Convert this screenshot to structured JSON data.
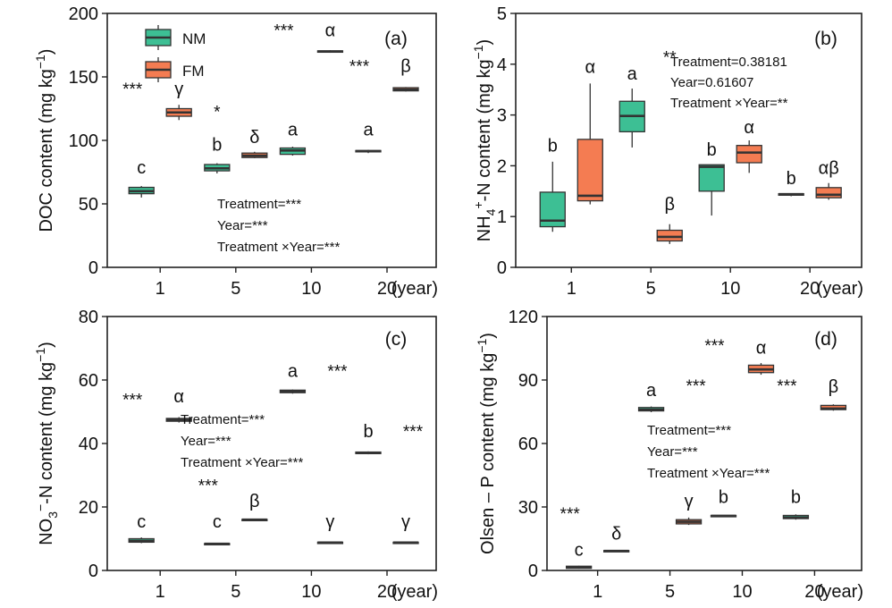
{
  "legend": {
    "items": [
      {
        "label": "NM",
        "color": "#3dbf94"
      },
      {
        "label": "FM",
        "color": "#f47c52"
      }
    ]
  },
  "colors": {
    "NM": "#3dbf94",
    "FM": "#f47c52",
    "median": "#333333",
    "axis": "#222222"
  },
  "chart_data": [
    {
      "type": "box",
      "panel_label": "(a)",
      "ylabel": "DOC content (mg kg⁻¹)",
      "ylabel_parts": {
        "main": "DOC content (mg kg",
        "sup": "−1",
        "close": ")"
      },
      "xlabel_unit": "(year)",
      "categories": [
        "1",
        "5",
        "10",
        "20"
      ],
      "ylim": [
        0,
        200
      ],
      "yticks": [
        0,
        50,
        100,
        150,
        200
      ],
      "series": [
        {
          "name": "NM",
          "boxes": [
            {
              "min": 55,
              "q1": 58,
              "median": 60,
              "q3": 63,
              "max": 64
            },
            {
              "min": 74,
              "q1": 76,
              "median": 78,
              "q3": 81,
              "max": 82
            },
            {
              "min": 88,
              "q1": 89,
              "median": 92,
              "q3": 94,
              "max": 95
            },
            {
              "min": 90,
              "q1": 91,
              "median": 91.5,
              "q3": 92,
              "max": 92.5
            }
          ]
        },
        {
          "name": "FM",
          "boxes": [
            {
              "min": 116,
              "q1": 119,
              "median": 122,
              "q3": 125,
              "max": 128
            },
            {
              "min": 86,
              "q1": 86.5,
              "median": 88,
              "q3": 90,
              "max": 91
            },
            {
              "min": 169,
              "q1": 169.5,
              "median": 170,
              "q3": 170.5,
              "max": 171
            },
            {
              "min": 138.5,
              "q1": 139,
              "median": 140,
              "q3": 141.5,
              "max": 142
            }
          ]
        }
      ],
      "annotations": [
        {
          "text": "c",
          "x": 0,
          "series": 0,
          "y": 74
        },
        {
          "text": "***",
          "x": 0,
          "series": 0,
          "y": 136
        },
        {
          "text": "γ",
          "x": 0,
          "series": 1,
          "y": 136
        },
        {
          "text": "b",
          "x": 1,
          "series": 0,
          "y": 92
        },
        {
          "text": "*",
          "x": 1,
          "series": 0,
          "y": 118
        },
        {
          "text": "δ",
          "x": 1,
          "series": 1,
          "y": 98
        },
        {
          "text": "a",
          "x": 2,
          "series": 0,
          "y": 104
        },
        {
          "text": "***",
          "x": 2,
          "series": 0,
          "y": 182
        },
        {
          "text": "α",
          "x": 2,
          "series": 1,
          "y": 182
        },
        {
          "text": "a",
          "x": 3,
          "series": 0,
          "y": 104
        },
        {
          "text": "***",
          "x": 3,
          "series": 0,
          "y": 154
        },
        {
          "text": "β",
          "x": 3,
          "series": 1,
          "y": 154
        }
      ],
      "stats": [
        "Treatment=***",
        "Year=***",
        "Treatment ×Year=***"
      ]
    },
    {
      "type": "box",
      "panel_label": "(b)",
      "ylabel": "NH₄⁺-N content (mg kg⁻¹)",
      "ylabel_parts": {
        "main": "content (mg kg",
        "sup": "−1",
        "close": ")",
        "ion": "NH",
        "ion_sub": "4",
        "ion_sup": "+",
        "ion_tail": "-N"
      },
      "xlabel_unit": "(year)",
      "categories": [
        "1",
        "5",
        "10",
        "20"
      ],
      "ylim": [
        0,
        5
      ],
      "yticks": [
        0,
        1,
        2,
        3,
        4,
        5
      ],
      "series": [
        {
          "name": "NM",
          "boxes": [
            {
              "min": 0.7,
              "q1": 0.8,
              "median": 0.92,
              "q3": 1.48,
              "max": 2.08
            },
            {
              "min": 2.36,
              "q1": 2.67,
              "median": 2.98,
              "q3": 3.27,
              "max": 3.52
            },
            {
              "min": 1.02,
              "q1": 1.5,
              "median": 1.98,
              "q3": 2.02,
              "max": 2.02
            },
            {
              "min": 1.4,
              "q1": 1.42,
              "median": 1.44,
              "q3": 1.45,
              "max": 1.46
            }
          ]
        },
        {
          "name": "FM",
          "boxes": [
            {
              "min": 1.24,
              "q1": 1.31,
              "median": 1.41,
              "q3": 2.52,
              "max": 3.62
            },
            {
              "min": 0.46,
              "q1": 0.52,
              "median": 0.6,
              "q3": 0.73,
              "max": 0.85
            },
            {
              "min": 1.86,
              "q1": 2.06,
              "median": 2.26,
              "q3": 2.4,
              "max": 2.5
            },
            {
              "min": 1.33,
              "q1": 1.37,
              "median": 1.43,
              "q3": 1.57,
              "max": 1.66
            }
          ]
        }
      ],
      "annotations": [
        {
          "text": "b",
          "x": 0,
          "series": 0,
          "y": 2.28
        },
        {
          "text": "α",
          "x": 0,
          "series": 1,
          "y": 3.83
        },
        {
          "text": "a",
          "x": 1,
          "series": 0,
          "y": 3.7
        },
        {
          "text": "**",
          "x": 1,
          "series": 1,
          "y": 4.02
        },
        {
          "text": "β",
          "x": 1,
          "series": 1,
          "y": 1.13
        },
        {
          "text": "b",
          "x": 2,
          "series": 0,
          "y": 2.2
        },
        {
          "text": "α",
          "x": 2,
          "series": 1,
          "y": 2.64
        },
        {
          "text": "b",
          "x": 3,
          "series": 0,
          "y": 1.64
        },
        {
          "text": "αβ",
          "x": 3,
          "series": 1,
          "y": 1.84
        }
      ],
      "stats": [
        "Treatment=0.38181",
        "Year=0.61607",
        "Treatment ×Year=**"
      ]
    },
    {
      "type": "box",
      "panel_label": "(c)",
      "ylabel": "NO₃⁻-N content (mg kg⁻¹)",
      "ylabel_parts": {
        "main": "content (mg kg",
        "sup": "−1",
        "close": ")",
        "ion": "NO",
        "ion_sub": "3",
        "ion_sup": "−",
        "ion_tail": "-N"
      },
      "xlabel_unit": "(year)",
      "categories": [
        "1",
        "5",
        "10",
        "20"
      ],
      "ylim": [
        0,
        80
      ],
      "yticks": [
        0,
        20,
        40,
        60,
        80
      ],
      "series": [
        {
          "name": "NM",
          "boxes": [
            {
              "min": 8.6,
              "q1": 8.9,
              "median": 9.3,
              "q3": 10,
              "max": 10.4
            },
            {
              "min": 8.1,
              "q1": 8.2,
              "median": 8.4,
              "q3": 8.5,
              "max": 8.6
            },
            {
              "min": 55.7,
              "q1": 56,
              "median": 56.3,
              "q3": 56.8,
              "max": 57
            },
            {
              "min": 36.6,
              "q1": 36.8,
              "median": 37,
              "q3": 37.3,
              "max": 37.5
            }
          ]
        },
        {
          "name": "FM",
          "boxes": [
            {
              "min": 46.6,
              "q1": 47,
              "median": 47.4,
              "q3": 47.9,
              "max": 48.3
            },
            {
              "min": 15.7,
              "q1": 15.8,
              "median": 16,
              "q3": 16.1,
              "max": 16.2
            },
            {
              "min": 8.6,
              "q1": 8.7,
              "median": 8.8,
              "q3": 8.9,
              "max": 9
            },
            {
              "min": 8.6,
              "q1": 8.7,
              "median": 8.8,
              "q3": 8.9,
              "max": 9
            }
          ]
        }
      ],
      "annotations": [
        {
          "text": "c",
          "x": 0,
          "series": 0,
          "y": 13.5
        },
        {
          "text": "***",
          "x": 0,
          "series": 0,
          "y": 52
        },
        {
          "text": "α",
          "x": 0,
          "series": 1,
          "y": 53
        },
        {
          "text": "c",
          "x": 1,
          "series": 0,
          "y": 13.5
        },
        {
          "text": "***",
          "x": 1,
          "series": 0,
          "y": 25
        },
        {
          "text": "β",
          "x": 1,
          "series": 1,
          "y": 20
        },
        {
          "text": "a",
          "x": 2,
          "series": 0,
          "y": 61
        },
        {
          "text": "***",
          "x": 2,
          "series": 1,
          "y": 61
        },
        {
          "text": "γ",
          "x": 2,
          "series": 1,
          "y": 13.5
        },
        {
          "text": "b",
          "x": 3,
          "series": 0,
          "y": 42
        },
        {
          "text": "***",
          "x": 3,
          "series": 1,
          "y": 42
        },
        {
          "text": "γ",
          "x": 3,
          "series": 1,
          "y": 13.5
        }
      ],
      "stats": [
        "Treatment=***",
        "Year=***",
        "Treatment ×Year=***"
      ]
    },
    {
      "type": "box",
      "panel_label": "(d)",
      "ylabel": "Olsen – P content (mg kg⁻¹)",
      "ylabel_parts": {
        "main": "Olsen – P content (mg kg",
        "sup": "−1",
        "close": ")"
      },
      "xlabel_unit": "(year)",
      "categories": [
        "1",
        "5",
        "10",
        "20"
      ],
      "ylim": [
        0,
        120
      ],
      "yticks": [
        0,
        30,
        60,
        90,
        120
      ],
      "series": [
        {
          "name": "NM",
          "boxes": [
            {
              "min": 0.8,
              "q1": 1,
              "median": 1.5,
              "q3": 2,
              "max": 2.2
            },
            {
              "min": 74.8,
              "q1": 75.4,
              "median": 76,
              "q3": 77,
              "max": 77.5
            },
            {
              "min": 25.3,
              "q1": 25.5,
              "median": 25.8,
              "q3": 26,
              "max": 26.2
            },
            {
              "min": 24,
              "q1": 24.5,
              "median": 25,
              "q3": 26,
              "max": 26.5
            }
          ]
        },
        {
          "name": "FM",
          "boxes": [
            {
              "min": 8.7,
              "q1": 8.9,
              "median": 9.2,
              "q3": 9.4,
              "max": 9.6
            },
            {
              "min": 21.5,
              "q1": 22,
              "median": 23,
              "q3": 24,
              "max": 25
            },
            {
              "min": 92.5,
              "q1": 93.5,
              "median": 95,
              "q3": 97,
              "max": 98
            },
            {
              "min": 75.5,
              "q1": 76,
              "median": 76.5,
              "q3": 78,
              "max": 78.5
            }
          ]
        }
      ],
      "annotations": [
        {
          "text": "c",
          "x": 0,
          "series": 0,
          "y": 7
        },
        {
          "text": "***",
          "x": 0,
          "series": 0,
          "y": 24
        },
        {
          "text": "δ",
          "x": 0,
          "series": 1,
          "y": 14.5
        },
        {
          "text": "a",
          "x": 1,
          "series": 0,
          "y": 82.5
        },
        {
          "text": "***",
          "x": 1,
          "series": 1,
          "y": 84.5
        },
        {
          "text": "γ",
          "x": 1,
          "series": 1,
          "y": 30
        },
        {
          "text": "b",
          "x": 2,
          "series": 0,
          "y": 32
        },
        {
          "text": "***",
          "x": 2,
          "series": 0,
          "y": 103.5
        },
        {
          "text": "α",
          "x": 2,
          "series": 1,
          "y": 102.5
        },
        {
          "text": "b",
          "x": 3,
          "series": 0,
          "y": 32
        },
        {
          "text": "***",
          "x": 3,
          "series": 0,
          "y": 84.5
        },
        {
          "text": "β",
          "x": 3,
          "series": 1,
          "y": 84
        }
      ],
      "stats": [
        "Treatment=***",
        "Year=***",
        "Treatment ×Year=***"
      ]
    }
  ]
}
